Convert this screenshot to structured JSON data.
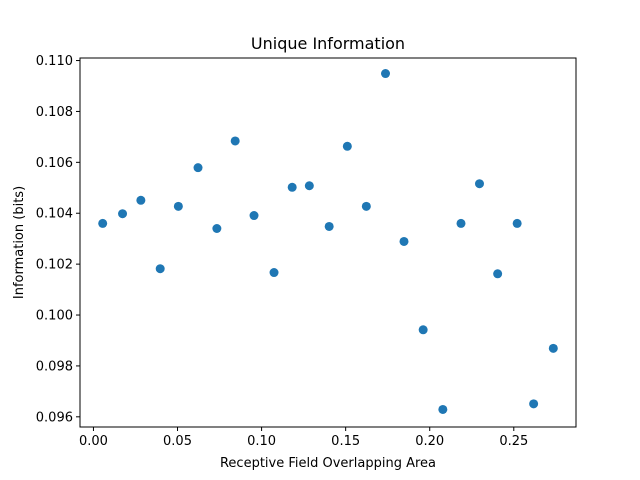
{
  "chart_data": {
    "type": "scatter",
    "title": "Unique Information",
    "xlabel": "Receptive Field Overlapping Area",
    "ylabel": "Information (bits)",
    "xlim": [
      -0.008,
      0.287
    ],
    "ylim": [
      0.0956,
      0.1101
    ],
    "xticks": [
      0.0,
      0.05,
      0.1,
      0.15,
      0.2,
      0.25
    ],
    "xtick_labels": [
      "0.00",
      "0.05",
      "0.10",
      "0.15",
      "0.20",
      "0.25"
    ],
    "yticks": [
      0.096,
      0.098,
      0.1,
      0.102,
      0.104,
      0.106,
      0.108,
      0.11
    ],
    "ytick_labels": [
      "0.096",
      "0.098",
      "0.100",
      "0.102",
      "0.104",
      "0.106",
      "0.108",
      "0.110"
    ],
    "grid": false,
    "marker_color": "#1f77b4",
    "x": [
      0.0055,
      0.0173,
      0.0282,
      0.0397,
      0.0505,
      0.0622,
      0.0734,
      0.0843,
      0.0955,
      0.1074,
      0.1182,
      0.1284,
      0.1402,
      0.151,
      0.1623,
      0.1737,
      0.1847,
      0.1961,
      0.2078,
      0.2186,
      0.2296,
      0.2404,
      0.252,
      0.2618,
      0.2735
    ],
    "y": [
      0.1036,
      0.10398,
      0.10451,
      0.10182,
      0.10427,
      0.10579,
      0.1034,
      0.10684,
      0.10391,
      0.10167,
      0.10502,
      0.10508,
      0.10348,
      0.10663,
      0.10427,
      0.10949,
      0.10289,
      0.09942,
      0.09629,
      0.1036,
      0.10516,
      0.10162,
      0.1036,
      0.09651,
      0.09869
    ]
  }
}
